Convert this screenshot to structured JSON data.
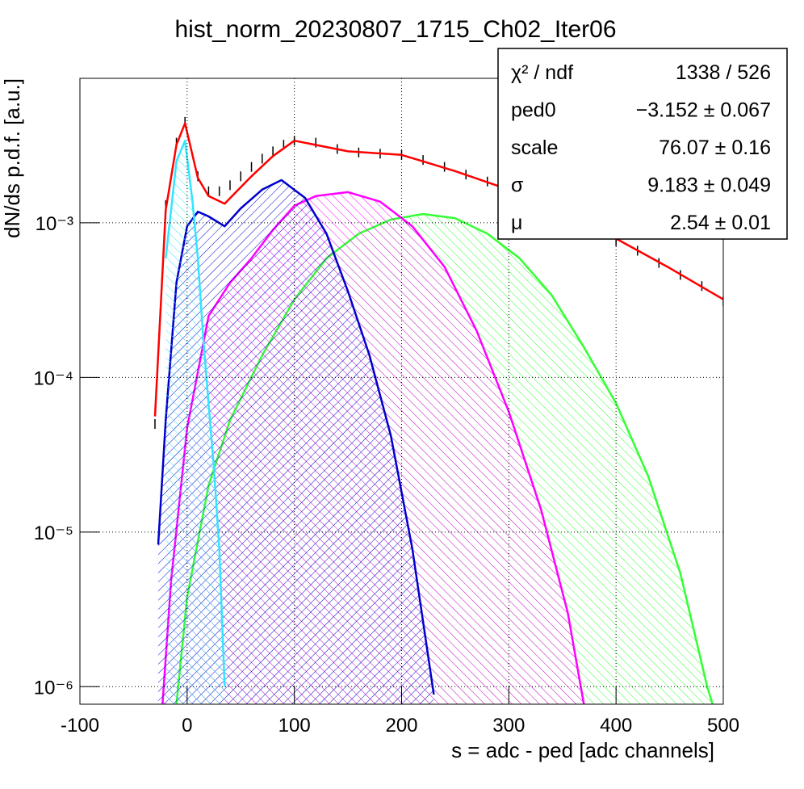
{
  "chart_data": {
    "type": "line",
    "title": "hist_norm_20230807_1715_Ch02_Iter06",
    "xlabel": "s = adc - ped [adc channels]",
    "ylabel": "dN/ds p.d.f. [a.u.]",
    "xlim": [
      -100,
      500
    ],
    "xticks": [
      -100,
      0,
      100,
      200,
      300,
      400,
      500
    ],
    "ylim": [
      7.7e-07,
      0.0086
    ],
    "yticks": [
      {
        "value": 1e-06,
        "label": "10⁻⁶"
      },
      {
        "value": 1e-05,
        "label": "10⁻⁵"
      },
      {
        "value": 0.0001,
        "label": "10⁻⁴"
      },
      {
        "value": 0.001,
        "label": "10⁻³"
      }
    ],
    "log_y": true,
    "grid": true,
    "series": [
      {
        "color": "#33ff33",
        "fill": true,
        "x": [
          -10,
          0,
          20,
          40,
          70,
          100,
          130,
          160,
          190,
          220,
          250,
          280,
          310,
          340,
          370,
          400,
          430,
          460,
          485,
          490
        ],
        "values": [
          7.7e-07,
          3.8e-06,
          2e-05,
          5.3e-05,
          0.000139,
          0.00032,
          0.00059,
          0.00085,
          0.00105,
          0.00114,
          0.00107,
          0.00085,
          0.00059,
          0.00034,
          0.000157,
          6.8e-05,
          2.3e-05,
          5.4e-06,
          1e-06,
          7.7e-07
        ]
      },
      {
        "color": "#ff00ff",
        "fill": true,
        "x": [
          -23,
          -15,
          0,
          20,
          40,
          60,
          80,
          100,
          120,
          150,
          180,
          210,
          240,
          270,
          300,
          330,
          355,
          370
        ],
        "values": [
          7.7e-07,
          4.8e-06,
          4.7e-05,
          0.00025,
          0.00041,
          0.00059,
          0.0009,
          0.00129,
          0.00149,
          0.00158,
          0.00137,
          0.00095,
          0.00052,
          0.0002,
          6e-05,
          1.4e-05,
          3e-06,
          7.7e-07
        ]
      },
      {
        "color": "#0000cc",
        "fill": true,
        "x": [
          -27,
          -20,
          -10,
          0,
          10,
          20,
          35,
          50,
          70,
          88,
          110,
          130,
          150,
          170,
          190,
          210,
          230
        ],
        "values": [
          8.3e-06,
          5.3e-05,
          0.00041,
          0.00095,
          0.00118,
          0.0011,
          0.00095,
          0.00124,
          0.00164,
          0.00189,
          0.00145,
          0.00085,
          0.00036,
          0.000139,
          4.2e-05,
          7.8e-06,
          8.9e-07
        ]
      },
      {
        "color": "#33e5ff",
        "fill": true,
        "x": [
          -20,
          -10,
          -2,
          5,
          10,
          15,
          20,
          25,
          30,
          35
        ],
        "values": [
          0.00059,
          0.0025,
          0.0034,
          0.00137,
          0.00059,
          0.000178,
          6.7e-05,
          2.6e-05,
          7.7e-06,
          1e-06
        ]
      },
      {
        "color": "#000000",
        "markers": true,
        "x": [
          -30,
          -20,
          -10,
          -2,
          10,
          20,
          30,
          40,
          50,
          60,
          70,
          80,
          90,
          100,
          120,
          140,
          160,
          180,
          200,
          220,
          240,
          260,
          280,
          300,
          320,
          340,
          360,
          380,
          400,
          420,
          440,
          460,
          480,
          500
        ],
        "values": [
          5e-05,
          0.0013,
          0.0033,
          0.0045,
          0.002,
          0.0016,
          0.0016,
          0.00175,
          0.002,
          0.0023,
          0.0026,
          0.0029,
          0.0032,
          0.0034,
          0.0033,
          0.003,
          0.00285,
          0.0028,
          0.00275,
          0.00255,
          0.0023,
          0.00205,
          0.00185,
          0.00165,
          0.00145,
          0.00125,
          0.00105,
          0.0009,
          0.00076,
          0.00066,
          0.00055,
          0.00046,
          0.00039,
          0.00031
        ]
      },
      {
        "color": "#ff0000",
        "x": [
          -30,
          -20,
          -10,
          -2,
          10,
          20,
          35,
          60,
          80,
          100,
          150,
          200,
          250,
          300,
          350,
          400,
          450,
          500
        ],
        "values": [
          5.6e-05,
          0.00121,
          0.0032,
          0.0044,
          0.00195,
          0.00149,
          0.00133,
          0.002,
          0.0027,
          0.0034,
          0.0029,
          0.00275,
          0.00216,
          0.00164,
          0.00114,
          0.00079,
          0.00051,
          0.00032
        ]
      }
    ],
    "stats": [
      {
        "label": "χ² / ndf",
        "value": "1338 / 526"
      },
      {
        "label": "ped0",
        "value": "−3.152 ± 0.067"
      },
      {
        "label": "scale",
        "value": "76.07 ± 0.16"
      },
      {
        "label": "σ",
        "value": "9.183 ± 0.049"
      },
      {
        "label": "μ",
        "value": "2.54 ± 0.01"
      }
    ]
  }
}
